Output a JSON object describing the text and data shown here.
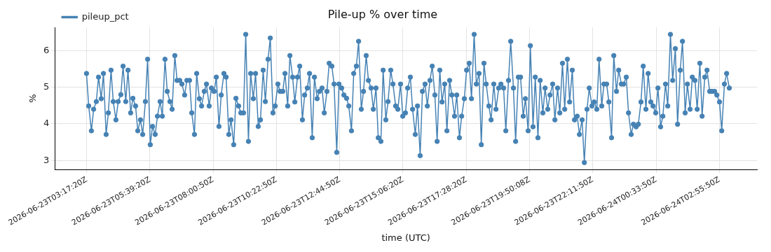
{
  "chart_data": {
    "type": "line",
    "title": "Pile-up % over time",
    "xlabel": "time (UTC)",
    "ylabel": "%",
    "x": [
      "2026-06-23T03:17",
      "2026-06-23T03:22",
      "2026-06-23T03:28",
      "2026-06-23T03:33",
      "2026-06-23T03:39",
      "2026-06-23T03:44",
      "2026-06-23T03:50",
      "2026-06-23T03:55",
      "2026-06-23T04:01",
      "2026-06-23T04:06",
      "2026-06-23T04:12",
      "2026-06-23T04:17",
      "2026-06-23T04:23",
      "2026-06-23T04:28",
      "2026-06-23T04:34",
      "2026-06-23T04:39",
      "2026-06-23T04:45",
      "2026-06-23T04:50",
      "2026-06-23T04:56",
      "2026-06-23T05:01",
      "2026-06-23T05:07",
      "2026-06-23T05:12",
      "2026-06-23T05:18",
      "2026-06-23T05:23",
      "2026-06-23T05:29",
      "2026-06-23T05:34",
      "2026-06-23T05:40",
      "2026-06-23T05:45",
      "2026-06-23T05:51",
      "2026-06-23T05:56",
      "2026-06-23T06:02",
      "2026-06-23T06:07",
      "2026-06-23T06:13",
      "2026-06-23T06:18",
      "2026-06-23T06:24",
      "2026-06-23T06:29",
      "2026-06-23T06:35",
      "2026-06-23T06:40",
      "2026-06-23T06:46",
      "2026-06-23T06:51",
      "2026-06-23T06:57",
      "2026-06-23T07:02",
      "2026-06-23T07:08",
      "2026-06-23T07:13",
      "2026-06-23T07:19",
      "2026-06-23T07:24",
      "2026-06-23T07:30",
      "2026-06-23T07:35",
      "2026-06-23T07:41",
      "2026-06-23T07:46",
      "2026-06-23T07:52",
      "2026-06-23T07:57",
      "2026-06-23T08:03",
      "2026-06-23T08:08",
      "2026-06-23T08:14",
      "2026-06-23T08:19",
      "2026-06-23T08:25",
      "2026-06-23T08:30",
      "2026-06-23T08:36",
      "2026-06-23T08:41",
      "2026-06-23T08:47",
      "2026-06-23T08:52",
      "2026-06-23T08:58",
      "2026-06-23T09:03",
      "2026-06-23T09:09",
      "2026-06-23T09:14",
      "2026-06-23T09:20",
      "2026-06-23T09:25",
      "2026-06-23T09:31",
      "2026-06-23T09:36",
      "2026-06-23T09:42",
      "2026-06-23T09:47",
      "2026-06-23T09:53",
      "2026-06-23T09:58",
      "2026-06-23T10:04",
      "2026-06-23T10:09",
      "2026-06-23T10:15",
      "2026-06-23T10:20",
      "2026-06-23T10:26",
      "2026-06-23T10:31",
      "2026-06-23T10:37",
      "2026-06-23T10:42",
      "2026-06-23T10:48",
      "2026-06-23T10:53",
      "2026-06-23T10:59",
      "2026-06-23T11:04",
      "2026-06-23T11:10",
      "2026-06-23T11:15",
      "2026-06-23T11:21",
      "2026-06-23T11:26",
      "2026-06-23T11:32",
      "2026-06-23T11:37",
      "2026-06-23T11:43",
      "2026-06-23T11:48",
      "2026-06-23T11:54",
      "2026-06-23T11:59",
      "2026-06-23T12:05",
      "2026-06-23T12:10",
      "2026-06-23T12:16",
      "2026-06-23T12:21",
      "2026-06-23T12:27",
      "2026-06-23T12:32",
      "2026-06-23T12:38",
      "2026-06-23T12:43",
      "2026-06-23T12:49",
      "2026-06-23T12:54",
      "2026-06-23T13:00",
      "2026-06-23T13:05",
      "2026-06-23T13:11",
      "2026-06-23T13:16",
      "2026-06-23T13:22",
      "2026-06-23T13:27",
      "2026-06-23T13:33",
      "2026-06-23T13:38",
      "2026-06-23T13:44",
      "2026-06-23T13:49",
      "2026-06-23T13:55",
      "2026-06-23T14:00",
      "2026-06-23T14:06",
      "2026-06-23T14:11",
      "2026-06-23T14:17",
      "2026-06-23T14:22",
      "2026-06-23T14:28",
      "2026-06-23T14:33",
      "2026-06-23T14:39",
      "2026-06-23T14:44",
      "2026-06-23T14:50",
      "2026-06-23T14:55",
      "2026-06-23T15:01",
      "2026-06-23T15:06",
      "2026-06-23T15:12",
      "2026-06-23T15:17",
      "2026-06-23T15:23",
      "2026-06-23T15:28",
      "2026-06-23T15:34",
      "2026-06-23T15:39",
      "2026-06-23T15:45",
      "2026-06-23T15:50",
      "2026-06-23T15:56",
      "2026-06-23T16:01",
      "2026-06-23T16:07",
      "2026-06-23T16:12",
      "2026-06-23T16:18",
      "2026-06-23T16:23",
      "2026-06-23T16:29",
      "2026-06-23T16:34",
      "2026-06-23T16:40",
      "2026-06-23T16:45",
      "2026-06-23T16:51",
      "2026-06-23T16:56",
      "2026-06-23T17:02",
      "2026-06-23T17:07",
      "2026-06-23T17:13",
      "2026-06-23T17:18",
      "2026-06-23T17:24",
      "2026-06-23T17:29",
      "2026-06-23T17:35",
      "2026-06-23T17:40",
      "2026-06-23T17:46",
      "2026-06-23T17:51",
      "2026-06-23T17:57",
      "2026-06-23T18:02",
      "2026-06-23T18:08",
      "2026-06-23T18:13",
      "2026-06-23T18:19",
      "2026-06-23T18:24",
      "2026-06-23T18:30",
      "2026-06-23T18:35",
      "2026-06-23T18:41",
      "2026-06-23T18:46",
      "2026-06-23T18:52",
      "2026-06-23T18:57",
      "2026-06-23T19:03",
      "2026-06-23T19:08",
      "2026-06-23T19:14",
      "2026-06-23T19:19",
      "2026-06-23T19:25",
      "2026-06-23T19:30",
      "2026-06-23T19:36",
      "2026-06-23T19:41",
      "2026-06-23T19:47",
      "2026-06-23T19:52",
      "2026-06-23T19:58",
      "2026-06-23T20:03",
      "2026-06-23T20:09",
      "2026-06-23T20:14",
      "2026-06-23T20:20",
      "2026-06-23T20:25",
      "2026-06-23T20:31",
      "2026-06-23T20:36",
      "2026-06-23T20:42",
      "2026-06-23T20:47",
      "2026-06-23T20:53",
      "2026-06-23T20:58",
      "2026-06-23T21:04",
      "2026-06-23T21:09",
      "2026-06-23T21:15",
      "2026-06-23T21:20",
      "2026-06-23T21:26",
      "2026-06-23T21:31",
      "2026-06-23T21:37",
      "2026-06-23T21:42",
      "2026-06-23T21:48",
      "2026-06-23T21:53",
      "2026-06-23T21:59",
      "2026-06-23T22:04",
      "2026-06-23T22:10",
      "2026-06-23T22:15",
      "2026-06-23T22:21",
      "2026-06-23T22:26",
      "2026-06-23T22:32",
      "2026-06-23T22:37",
      "2026-06-23T22:43",
      "2026-06-23T22:48",
      "2026-06-23T22:54",
      "2026-06-23T22:59",
      "2026-06-23T23:05",
      "2026-06-23T23:10",
      "2026-06-23T23:16",
      "2026-06-23T23:21",
      "2026-06-23T23:27",
      "2026-06-23T23:32",
      "2026-06-23T23:38",
      "2026-06-23T23:43",
      "2026-06-23T23:49",
      "2026-06-23T23:54",
      "2026-06-24T00:00",
      "2026-06-24T00:05",
      "2026-06-24T00:11",
      "2026-06-24T00:16",
      "2026-06-24T00:22",
      "2026-06-24T00:27",
      "2026-06-24T00:33",
      "2026-06-24T00:38",
      "2026-06-24T00:44",
      "2026-06-24T00:49",
      "2026-06-24T00:55",
      "2026-06-24T01:00",
      "2026-06-24T01:06",
      "2026-06-24T01:11",
      "2026-06-24T01:17",
      "2026-06-24T01:22",
      "2026-06-24T01:28",
      "2026-06-24T01:33",
      "2026-06-24T01:39",
      "2026-06-24T01:44",
      "2026-06-24T01:50",
      "2026-06-24T01:55",
      "2026-06-24T02:01",
      "2026-06-24T02:06",
      "2026-06-24T02:12",
      "2026-06-24T02:17",
      "2026-06-24T02:23",
      "2026-06-24T02:28",
      "2026-06-24T02:34",
      "2026-06-24T02:39",
      "2026-06-24T02:45",
      "2026-06-24T02:50",
      "2026-06-24T02:56",
      "2026-06-24T03:01",
      "2026-06-24T03:07",
      "2026-06-24T03:12",
      "2026-06-24T03:18"
    ],
    "series": [
      {
        "name": "pileup_pct",
        "color": "#4682b4",
        "values": [
          5.38,
          4.49,
          3.81,
          4.4,
          4.61,
          5.28,
          4.69,
          5.38,
          3.71,
          4.3,
          5.47,
          4.61,
          4.11,
          4.61,
          4.8,
          5.58,
          4.61,
          5.47,
          4.3,
          4.7,
          4.49,
          3.81,
          4.11,
          3.71,
          4.61,
          5.77,
          3.43,
          3.93,
          3.71,
          4.21,
          4.61,
          4.21,
          5.77,
          4.89,
          4.61,
          4.4,
          5.87,
          5.19,
          5.19,
          5.09,
          4.79,
          5.19,
          5.19,
          4.3,
          3.71,
          5.38,
          4.69,
          4.49,
          4.89,
          5.09,
          4.49,
          4.98,
          4.89,
          5.28,
          3.93,
          4.79,
          5.38,
          5.28,
          3.71,
          4.11,
          3.43,
          4.7,
          4.49,
          4.3,
          4.3,
          6.45,
          3.52,
          5.38,
          4.69,
          5.38,
          3.93,
          4.11,
          5.47,
          4.61,
          5.77,
          6.35,
          4.3,
          4.49,
          5.09,
          4.89,
          4.89,
          5.38,
          4.49,
          5.87,
          5.28,
          4.6,
          5.28,
          5.58,
          4.11,
          4.79,
          4.98,
          5.38,
          3.62,
          5.28,
          4.69,
          4.89,
          4.98,
          4.3,
          4.89,
          5.66,
          5.58,
          5.09,
          3.22,
          5.09,
          4.98,
          4.79,
          4.7,
          4.49,
          3.81,
          5.38,
          5.58,
          6.26,
          4.4,
          4.89,
          5.87,
          5.19,
          4.98,
          4.4,
          4.98,
          3.62,
          3.52,
          5.47,
          4.11,
          4.61,
          5.47,
          5.09,
          4.49,
          4.4,
          5.09,
          4.21,
          4.3,
          4.98,
          5.28,
          4.4,
          3.71,
          4.49,
          3.13,
          4.89,
          5.09,
          4.49,
          5.19,
          5.58,
          4.79,
          3.52,
          5.47,
          4.6,
          5.09,
          3.81,
          5.19,
          4.79,
          4.21,
          4.79,
          3.62,
          4.21,
          4.69,
          5.47,
          5.66,
          4.69,
          6.45,
          5.09,
          5.38,
          3.43,
          5.66,
          5.09,
          4.49,
          4.11,
          5.09,
          4.4,
          4.98,
          5.09,
          4.98,
          3.81,
          5.19,
          6.26,
          4.98,
          3.52,
          5.28,
          5.28,
          4.21,
          4.69,
          3.81,
          6.14,
          3.92,
          5.28,
          3.62,
          5.19,
          4.3,
          4.98,
          4.4,
          4.79,
          5.09,
          4.11,
          4.98,
          4.3,
          5.66,
          4.4,
          5.77,
          4.6,
          5.47,
          4.11,
          4.21,
          3.71,
          4.11,
          2.94,
          4.4,
          4.98,
          4.49,
          4.6,
          4.4,
          5.77,
          4.49,
          5.09,
          5.09,
          4.6,
          3.62,
          5.87,
          4.89,
          5.47,
          5.09,
          5.09,
          5.28,
          4.3,
          3.71,
          3.99,
          3.92,
          3.99,
          4.6,
          5.58,
          4.4,
          5.38,
          4.6,
          4.49,
          4.3,
          4.98,
          3.92,
          4.21,
          5.09,
          4.49,
          6.45,
          5.19,
          6.06,
          3.99,
          5.47,
          6.26,
          4.3,
          5.09,
          4.4,
          5.28,
          5.19,
          4.4,
          5.66,
          4.21,
          5.28,
          5.47,
          4.89,
          4.89,
          4.89,
          4.79,
          4.6,
          3.81,
          5.09,
          5.38,
          4.98
        ]
      }
    ],
    "xlim": [
      "2026-06-23T02:06",
      "2026-06-24T04:20"
    ],
    "xticks": [
      {
        "value": "2026-06-23T03:17:20",
        "label": "2026-06-23T03:17:20Z"
      },
      {
        "value": "2026-06-23T05:39:20",
        "label": "2026-06-23T05:39:20Z"
      },
      {
        "value": "2026-06-23T08:00:50",
        "label": "2026-06-23T08:00:50Z"
      },
      {
        "value": "2026-06-23T10:22:50",
        "label": "2026-06-23T10:22:50Z"
      },
      {
        "value": "2026-06-23T12:44:50",
        "label": "2026-06-23T12:44:50Z"
      },
      {
        "value": "2026-06-23T15:06:20",
        "label": "2026-06-23T15:06:20Z"
      },
      {
        "value": "2026-06-23T17:28:20",
        "label": "2026-06-23T17:28:20Z"
      },
      {
        "value": "2026-06-23T19:50:08",
        "label": "2026-06-23T19:50:08Z"
      },
      {
        "value": "2026-06-23T22:11:50",
        "label": "2026-06-23T22:11:50Z"
      },
      {
        "value": "2026-06-24T00:33:50",
        "label": "2026-06-24T00:33:50Z"
      },
      {
        "value": "2026-06-24T02:55:50",
        "label": "2026-06-24T02:55:50Z"
      }
    ],
    "ylim": [
      2.75,
      6.64
    ],
    "yticks": [
      3,
      4,
      5,
      6
    ],
    "grid": true,
    "legend": "top left",
    "marker": "circle",
    "line_style": "solid"
  }
}
